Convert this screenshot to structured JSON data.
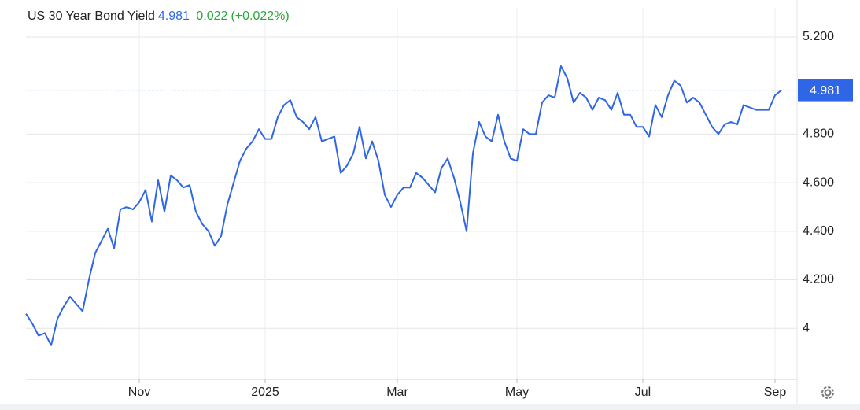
{
  "chart_data": {
    "type": "line",
    "title": "US 30 Year Bond Yield",
    "last_value": 4.981,
    "change": 0.022,
    "change_pct": "(+0.022%)",
    "color": "#2f66e6",
    "grid": true,
    "categories": [
      null,
      null,
      null,
      null,
      null,
      null,
      null,
      null,
      null,
      null,
      null,
      null,
      null,
      null,
      null,
      null,
      null,
      null,
      "Nov",
      null,
      null,
      null,
      null,
      null,
      null,
      null,
      null,
      null,
      null,
      null,
      null,
      null,
      null,
      null,
      null,
      null,
      null,
      null,
      "2025",
      null,
      null,
      null,
      null,
      null,
      null,
      null,
      null,
      null,
      null,
      null,
      null,
      null,
      null,
      null,
      null,
      null,
      null,
      null,
      null,
      "Mar",
      null,
      null,
      null,
      null,
      null,
      null,
      null,
      null,
      null,
      null,
      null,
      null,
      null,
      null,
      null,
      null,
      null,
      null,
      "May",
      null,
      null,
      null,
      null,
      null,
      null,
      null,
      null,
      null,
      null,
      null,
      null,
      null,
      null,
      null,
      null,
      null,
      null,
      null,
      "Jul",
      null,
      null,
      null,
      null,
      null,
      null,
      null,
      null,
      null,
      null,
      null,
      null,
      null,
      null,
      null,
      null,
      null,
      null,
      null,
      null,
      "Sep",
      null
    ],
    "values": [
      4.06,
      4.02,
      3.97,
      3.98,
      3.93,
      4.04,
      4.09,
      4.13,
      4.1,
      4.07,
      4.2,
      4.31,
      4.36,
      4.41,
      4.33,
      4.49,
      4.5,
      4.49,
      4.52,
      4.57,
      4.44,
      4.61,
      4.48,
      4.63,
      4.61,
      4.58,
      4.59,
      4.48,
      4.43,
      4.4,
      4.34,
      4.38,
      4.51,
      4.6,
      4.69,
      4.74,
      4.77,
      4.82,
      4.78,
      4.78,
      4.87,
      4.92,
      4.94,
      4.87,
      4.85,
      4.82,
      4.87,
      4.77,
      4.78,
      4.79,
      4.64,
      4.67,
      4.72,
      4.83,
      4.7,
      4.77,
      4.69,
      4.55,
      4.5,
      4.55,
      4.58,
      4.58,
      4.64,
      4.62,
      4.59,
      4.56,
      4.66,
      4.7,
      4.62,
      4.52,
      4.4,
      4.72,
      4.85,
      4.79,
      4.77,
      4.88,
      4.77,
      4.7,
      4.69,
      4.82,
      4.8,
      4.8,
      4.93,
      4.96,
      4.95,
      5.08,
      5.03,
      4.93,
      4.97,
      4.95,
      4.9,
      4.95,
      4.94,
      4.9,
      4.97,
      4.88,
      4.88,
      4.83,
      4.83,
      4.79,
      4.92,
      4.87,
      4.96,
      5.02,
      5.0,
      4.93,
      4.95,
      4.93,
      4.88,
      4.83,
      4.8,
      4.84,
      4.85,
      4.84,
      4.92,
      4.91,
      4.9,
      4.9,
      4.9,
      4.96,
      4.981
    ],
    "ylim": [
      3.79,
      5.32
    ],
    "yticks": [
      4,
      {
        "value": 4.2,
        "label": "4.200"
      },
      {
        "value": 4.4,
        "label": "4.400"
      },
      {
        "value": 4.6,
        "label": "4.600"
      },
      {
        "value": 4.8,
        "label": "4.800"
      },
      {
        "value": 5.2,
        "label": "5.200"
      }
    ]
  }
}
